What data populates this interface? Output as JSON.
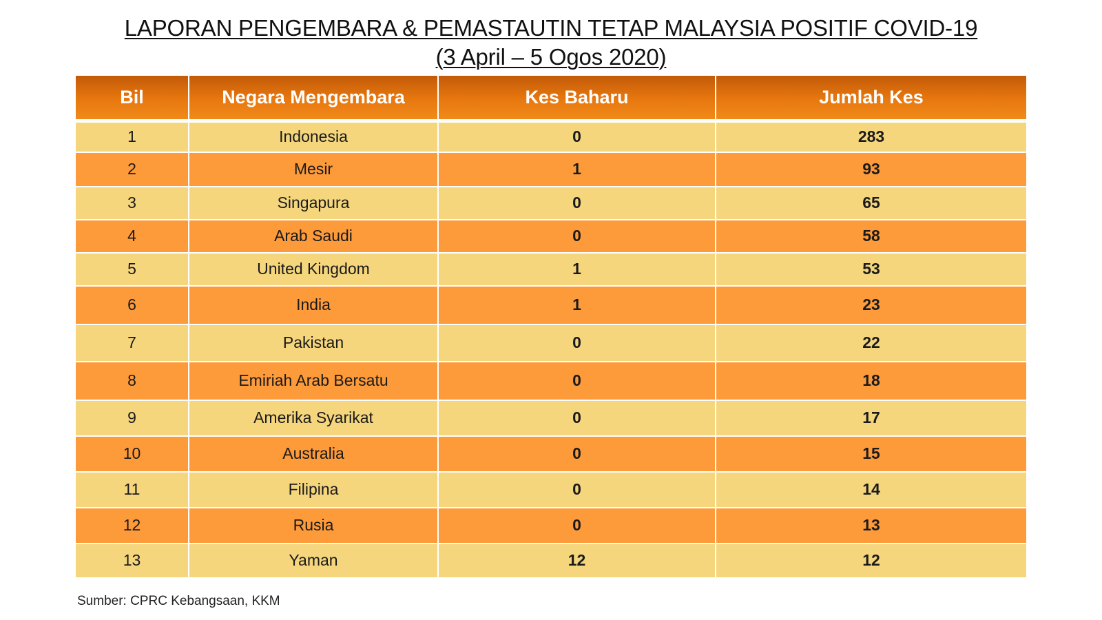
{
  "title": {
    "line1": "LAPORAN PENGEMBARA & PEMASTAUTIN TETAP MALAYSIA POSITIF COVID-19",
    "line2": "(3 April – 5 Ogos 2020)"
  },
  "table": {
    "headers": [
      "Bil",
      "Negara Mengembara",
      "Kes Baharu",
      "Jumlah Kes"
    ],
    "rows": [
      [
        "1",
        "Indonesia",
        "0",
        "283"
      ],
      [
        "2",
        "Mesir",
        "1",
        "93"
      ],
      [
        "3",
        "Singapura",
        "0",
        "65"
      ],
      [
        "4",
        "Arab Saudi",
        "0",
        "58"
      ],
      [
        "5",
        "United Kingdom",
        "1",
        "53"
      ],
      [
        "6",
        "India",
        "1",
        "23"
      ],
      [
        "7",
        "Pakistan",
        "0",
        "22"
      ],
      [
        "8",
        "Emiriah Arab Bersatu",
        "0",
        "18"
      ],
      [
        "9",
        "Amerika Syarikat",
        "0",
        "17"
      ],
      [
        "10",
        "Australia",
        "0",
        "15"
      ],
      [
        "11",
        "Filipina",
        "0",
        "14"
      ],
      [
        "12",
        "Rusia",
        "0",
        "13"
      ],
      [
        "13",
        "Yaman",
        "12",
        "12"
      ]
    ]
  },
  "source": "Sumber: CPRC Kebangsaan, KKM",
  "colors": {
    "header": "#e8780f",
    "row_light": "#f5d67c",
    "row_dark": "#fd9a3a"
  }
}
